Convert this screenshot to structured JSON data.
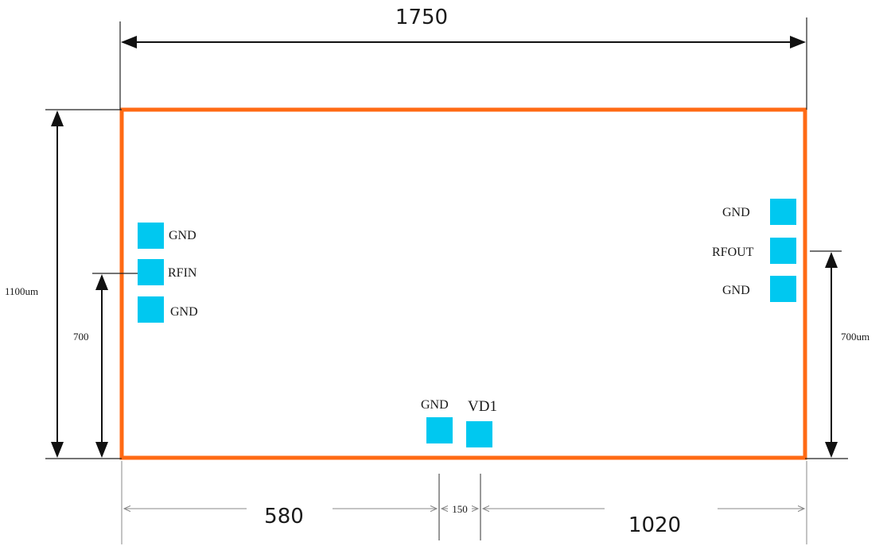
{
  "dimensions": {
    "total_width": "1750",
    "total_height": "1100um",
    "rfin_height": "700",
    "rfout_height": "700um",
    "left_offset": "580",
    "pad_spacing": "150",
    "right_offset": "1020"
  },
  "pads": {
    "left_top": "GND",
    "left_mid": "RFIN",
    "left_bottom": "GND",
    "right_top": "GND",
    "right_mid": "RFOUT",
    "right_bottom": "GND",
    "bottom_gnd": "GND",
    "bottom_vd": "VD1"
  },
  "colors": {
    "chip_outline": "#ff6a14",
    "pad_fill": "#00c8f0"
  }
}
